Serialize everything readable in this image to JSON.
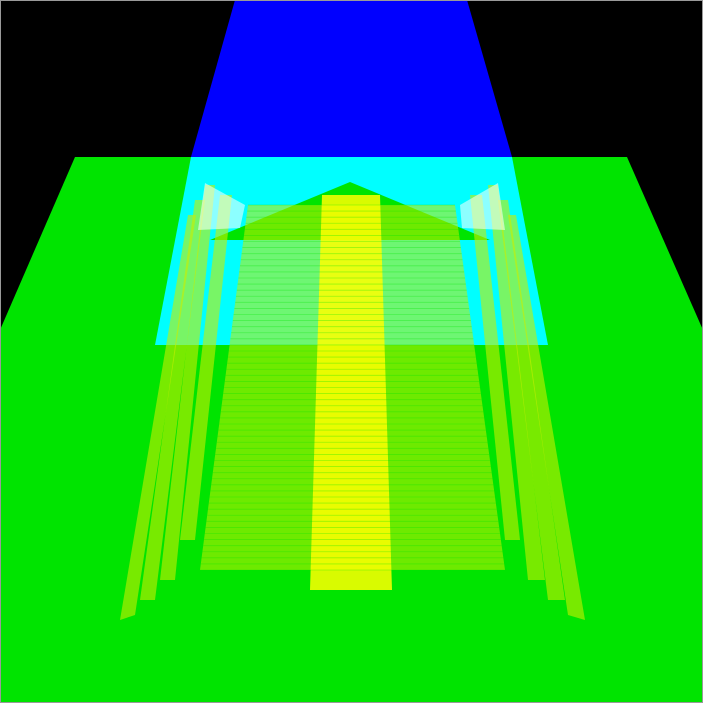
{
  "scene": {
    "colors": {
      "background": "#000000",
      "ground": "#00e400",
      "beam": "#0000ff",
      "beam_overlap": "#00ffff",
      "panel": "#ffff00",
      "panel_dim": "#c8ee00",
      "highlight": "#ffffff",
      "border": "#9a9a9a"
    }
  }
}
